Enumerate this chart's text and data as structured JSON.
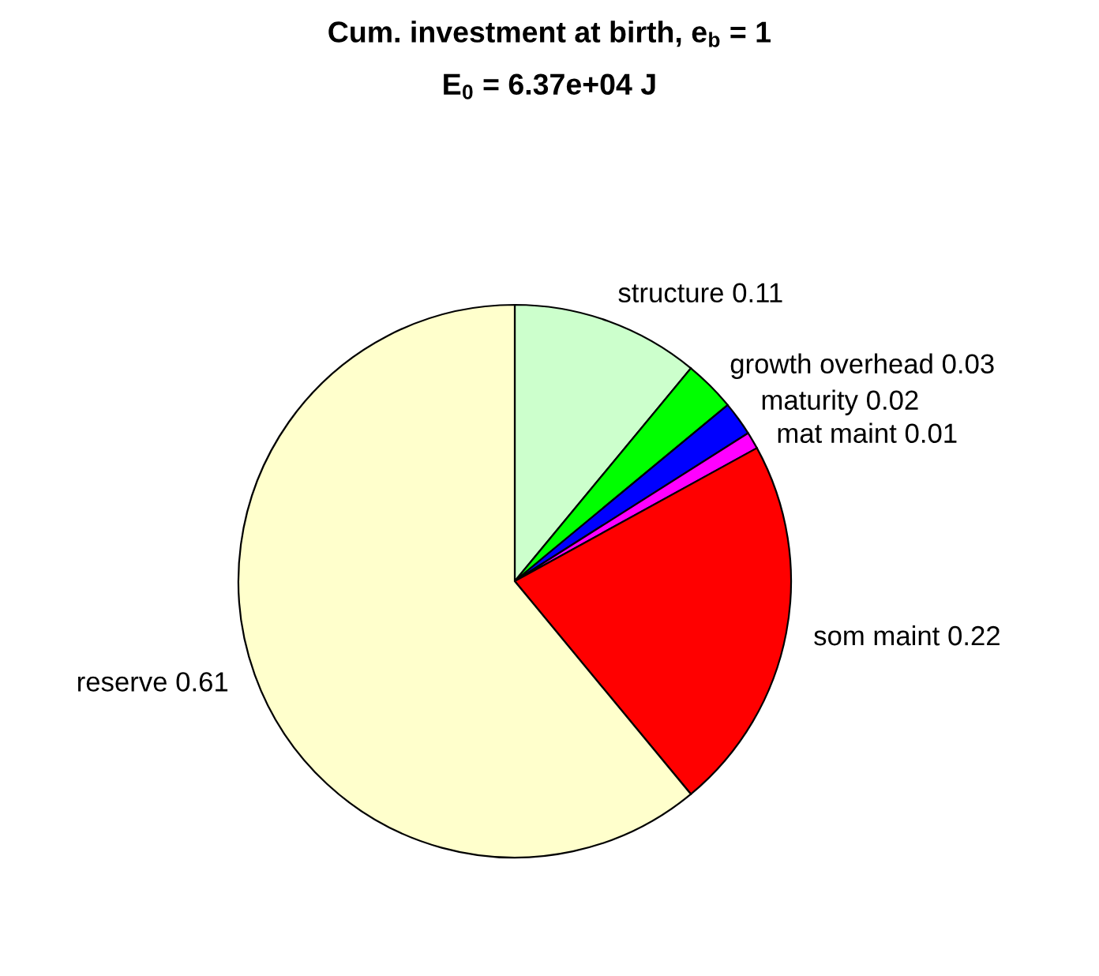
{
  "chart_data": {
    "type": "pie",
    "title": "Cum. investment at birth, e$_{b}$ = 1",
    "subtitle": "E$_{0}$ = 6.37e+04 J",
    "categories": [
      "structure",
      "growth overhead",
      "maturity",
      "mat maint",
      "som maint",
      "reserve"
    ],
    "values": [
      0.11,
      0.03,
      0.02,
      0.01,
      0.22,
      0.61
    ],
    "colors": [
      "#ccffcc",
      "#00ff00",
      "#0000ff",
      "#ff00ff",
      "#ff0000",
      "#ffffcc"
    ],
    "data_labels": true
  }
}
